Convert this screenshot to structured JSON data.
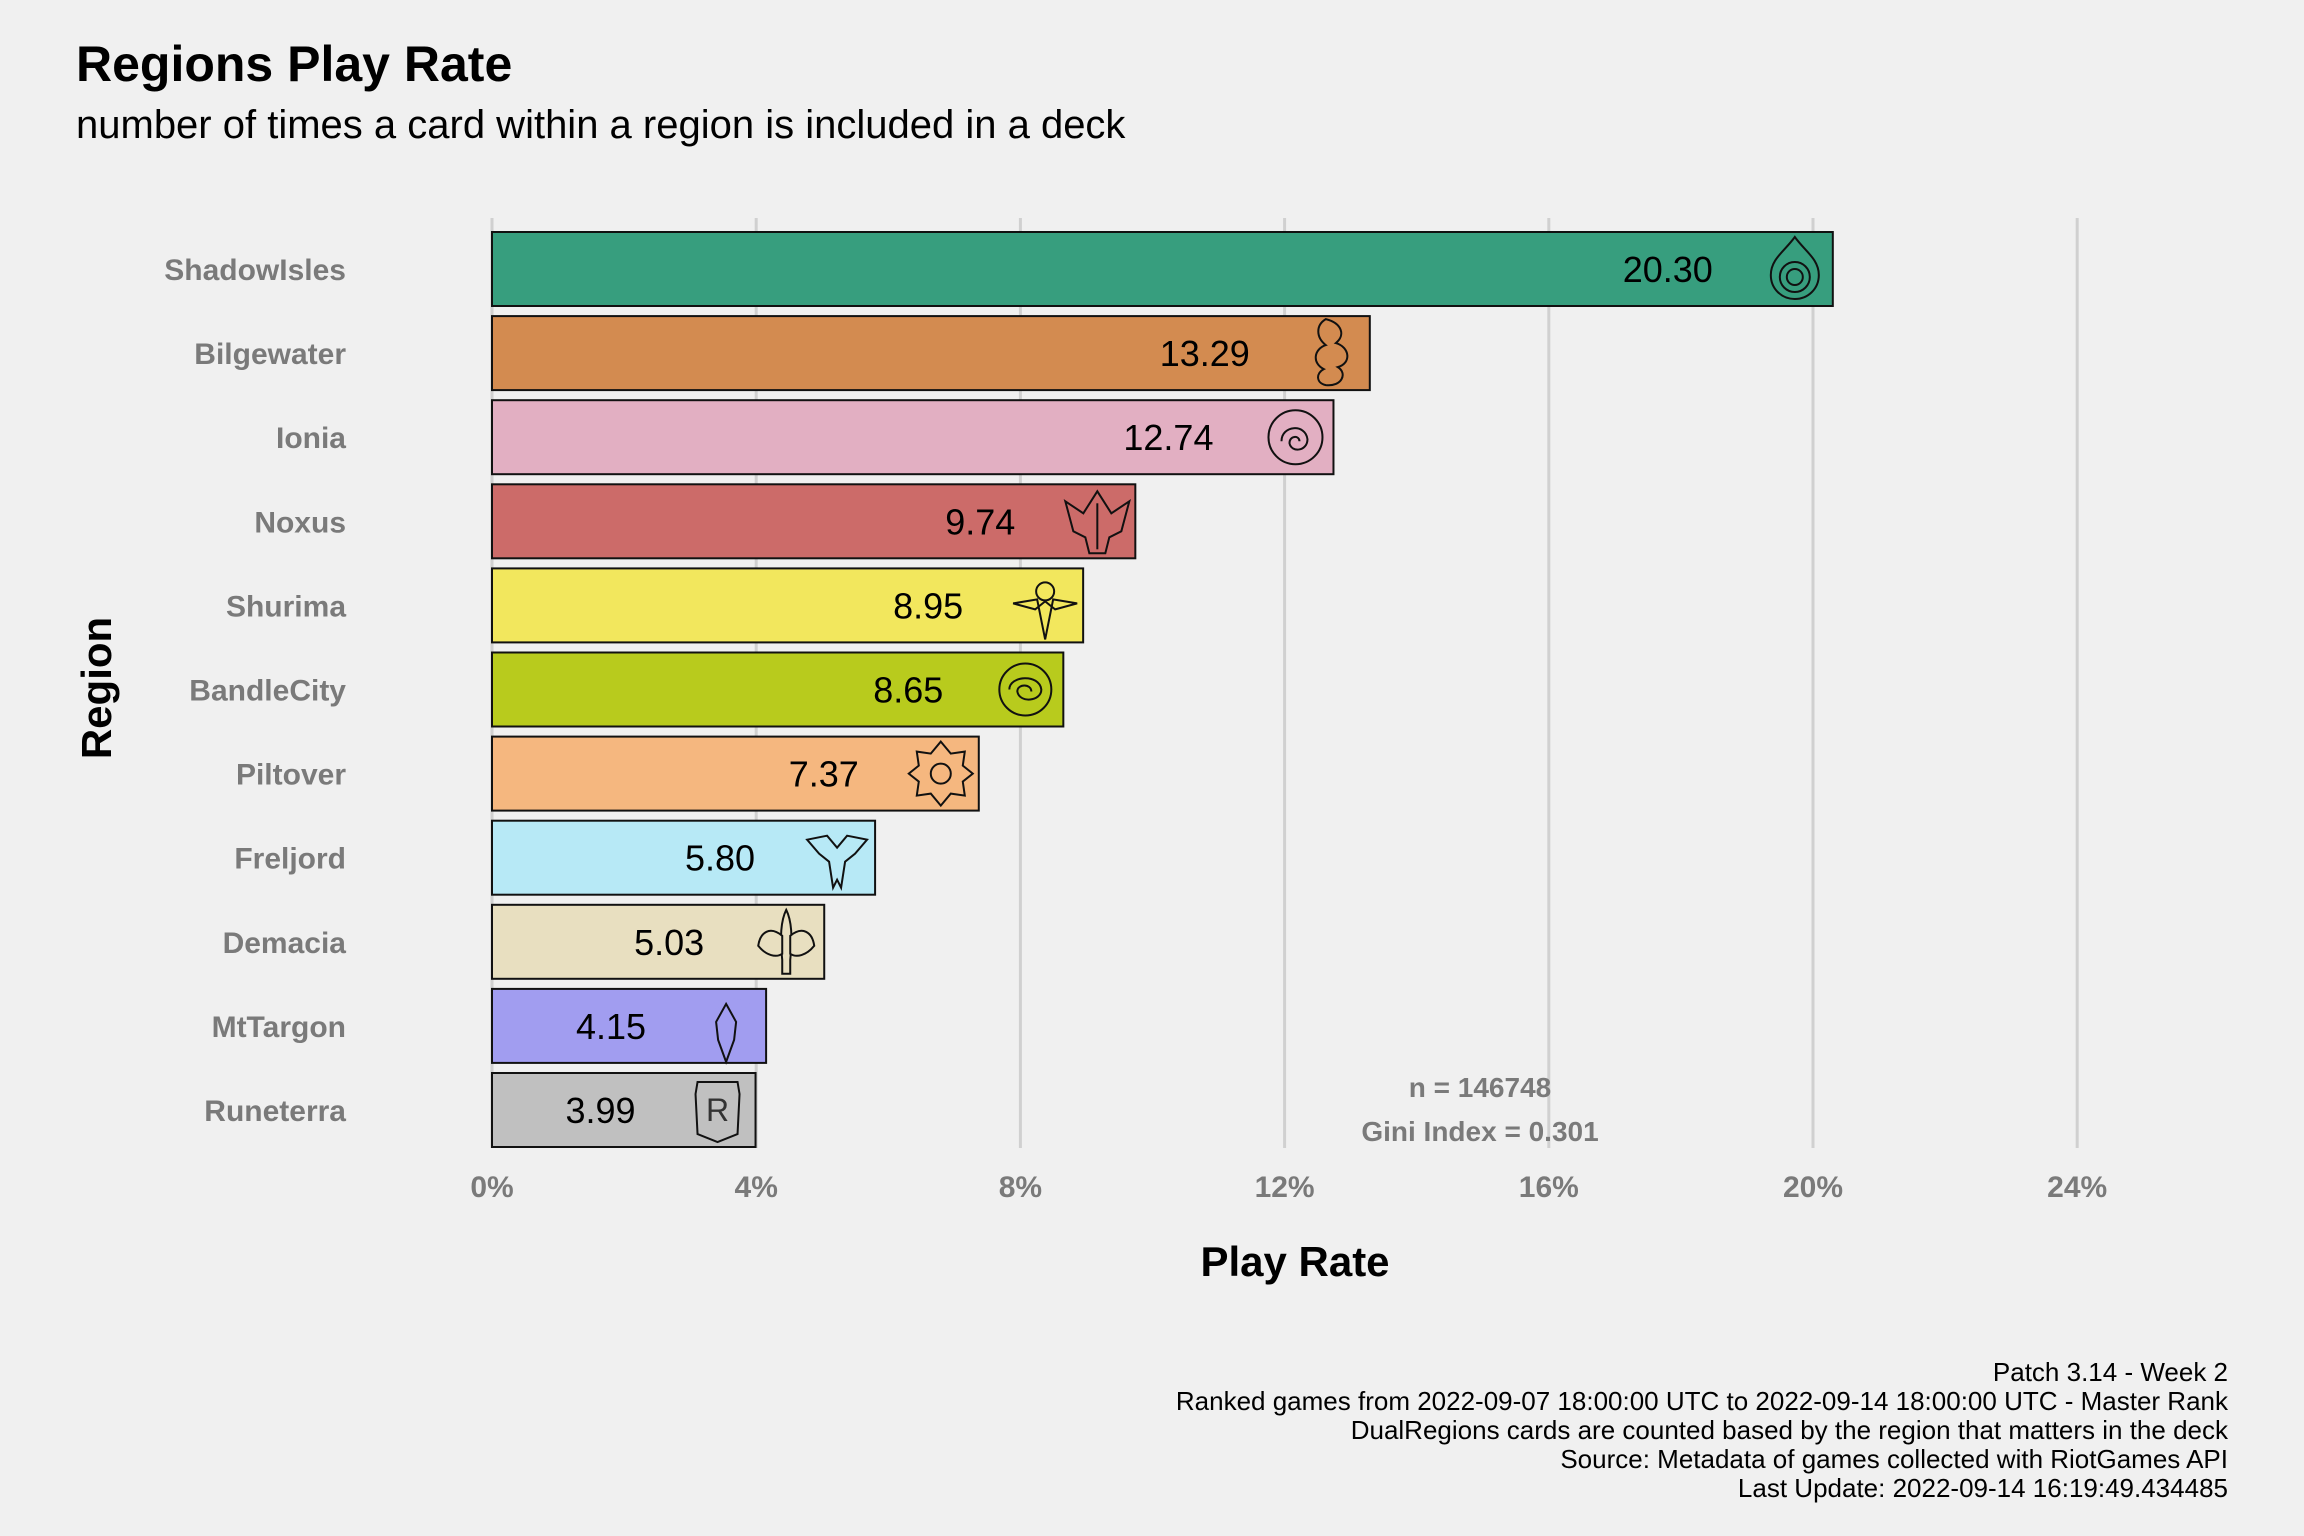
{
  "chart_data": {
    "type": "bar",
    "orientation": "horizontal",
    "title": "Regions Play Rate",
    "subtitle": "number of times a card within a region is included in a deck",
    "xlabel": "Play Rate",
    "ylabel": "Region",
    "xlim": [
      0,
      24
    ],
    "xticks": [
      "0%",
      "4%",
      "8%",
      "12%",
      "16%",
      "20%",
      "24%"
    ],
    "xtick_values": [
      0,
      4,
      8,
      12,
      16,
      20,
      24
    ],
    "grid": "vertical major lines",
    "categories": [
      "ShadowIsles",
      "Bilgewater",
      "Ionia",
      "Noxus",
      "Shurima",
      "BandleCity",
      "Piltover",
      "Freljord",
      "Demacia",
      "MtTargon",
      "Runeterra"
    ],
    "values": [
      20.3,
      13.29,
      12.74,
      9.74,
      8.95,
      8.65,
      7.37,
      5.8,
      5.03,
      4.15,
      3.99
    ],
    "value_labels": [
      "20.30",
      "13.29",
      "12.74",
      "9.74",
      "8.95",
      "8.65",
      "7.37",
      "5.80",
      "5.03",
      "4.15",
      "3.99"
    ],
    "colors": [
      "#379e7e",
      "#d38b50",
      "#e2afc2",
      "#cc6b69",
      "#f2e75d",
      "#b8cb1d",
      "#f5b77f",
      "#b7e9f6",
      "#e8dfc0",
      "#a19df0",
      "#c0c0c0"
    ],
    "icons": [
      "shadowisles-icon",
      "bilgewater-icon",
      "ionia-icon",
      "noxus-icon",
      "shurima-icon",
      "bandlecity-icon",
      "piltover-icon",
      "freljord-icon",
      "demacia-icon",
      "mttargon-icon",
      "runeterra-icon"
    ],
    "annotations": [
      "n = 146748",
      "Gini Index = 0.301"
    ],
    "caption": [
      "Patch 3.14 - Week 2",
      "Ranked games from 2022-09-07 18:00:00 UTC to 2022-09-14 18:00:00 UTC - Master Rank",
      "DualRegions cards are counted based by the region that matters in the deck",
      "Source: Metadata of games collected with RiotGames API",
      "Last Update: 2022-09-14 16:19:49.434485"
    ]
  }
}
